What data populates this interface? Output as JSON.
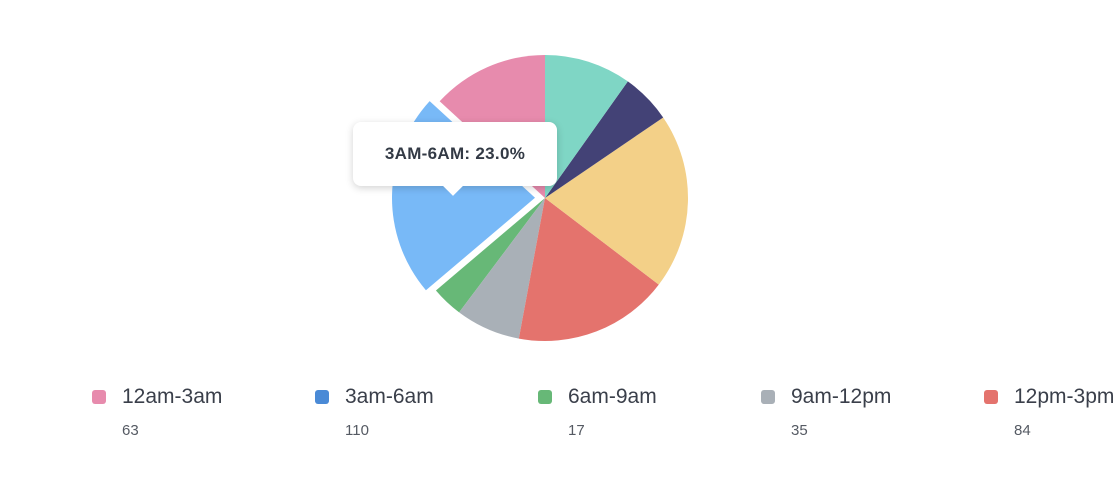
{
  "chart_data": {
    "type": "pie",
    "slices": [
      {
        "label": "12am-3am",
        "value": 63,
        "color": "#e78bad"
      },
      {
        "label": "3am-6am",
        "value": 110,
        "color": "#78b9f7",
        "legend_color": "#4a8ad6",
        "highlighted": true
      },
      {
        "label": "6am-9am",
        "value": 17,
        "color": "#67b877"
      },
      {
        "label": "9am-12pm",
        "value": 35,
        "color": "#a9b0b7"
      },
      {
        "label": "12pm-3pm",
        "value": 84,
        "color": "#e4736d"
      },
      {
        "label": "",
        "value": 95,
        "color": "#f3d088"
      },
      {
        "label": "",
        "value": 27,
        "color": "#434276"
      },
      {
        "label": "",
        "value": 47,
        "color": "#7fd6c5"
      }
    ],
    "direction": "counterclockwise-from-top",
    "legend_position": "bottom"
  },
  "tooltip": {
    "text": "3AM-6AM: 23.0%"
  },
  "legend": [
    {
      "label": "12am-3am",
      "value": "63",
      "color": "#e78bad"
    },
    {
      "label": "3am-6am",
      "value": "110",
      "color": "#4a8ad6"
    },
    {
      "label": "6am-9am",
      "value": "17",
      "color": "#67b877"
    },
    {
      "label": "9am-12pm",
      "value": "35",
      "color": "#a9b0b7"
    },
    {
      "label": "12pm-3pm",
      "value": "84",
      "color": "#e4736d"
    }
  ]
}
